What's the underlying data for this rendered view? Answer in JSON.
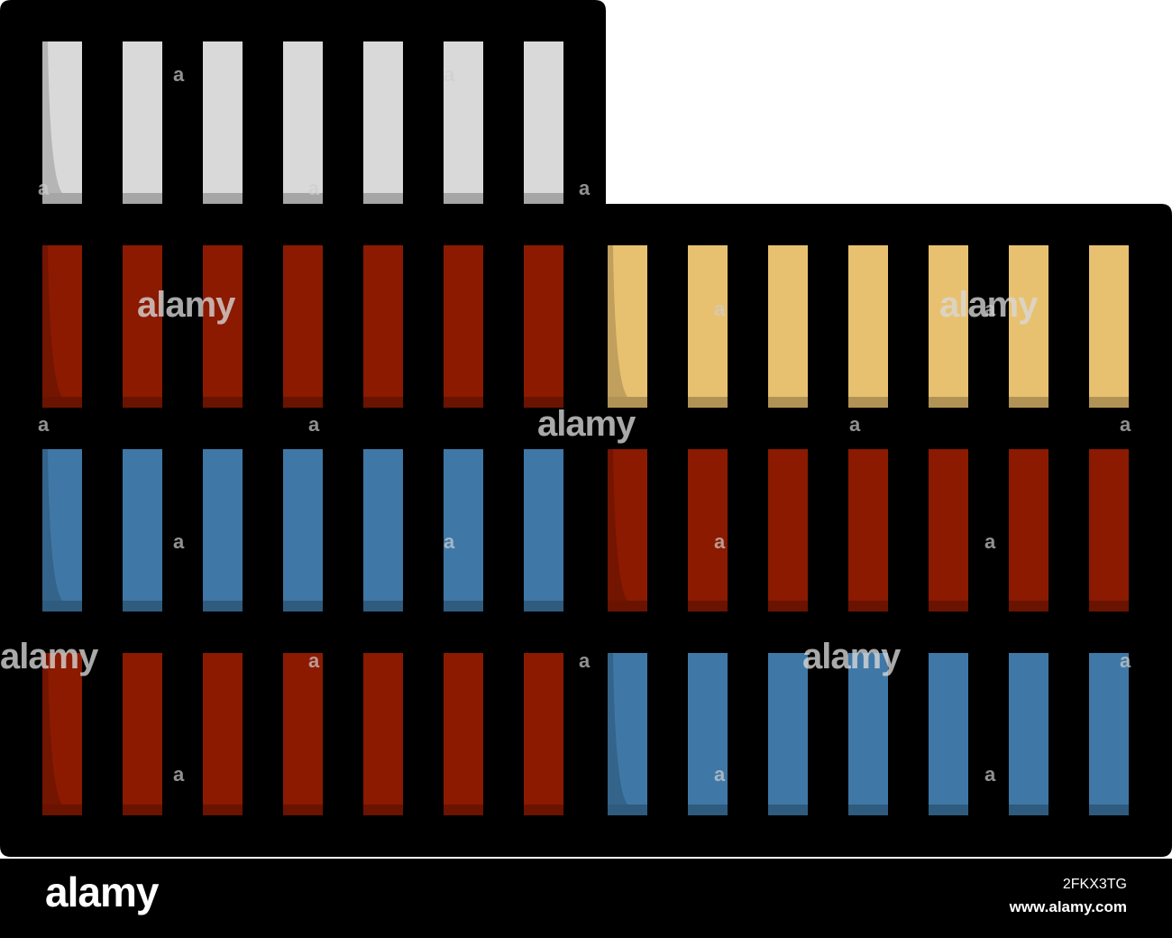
{
  "colors": {
    "outline": "#000000",
    "gray_block": "#d9d9d9",
    "red_block": "#8b1a00",
    "yellow_block": "#e8c170",
    "blue_block": "#3f78a6"
  },
  "icon": "container-stack-icon",
  "rows": [
    {
      "left": "gray",
      "right": null
    },
    {
      "left": "red",
      "right": "yellow"
    },
    {
      "left": "blue",
      "right": "red"
    },
    {
      "left": "red",
      "right": "blue"
    }
  ],
  "watermark": {
    "word": "alamy",
    "letter": "a"
  },
  "footer": {
    "logo": "alamy",
    "image_id": "2FKX3TG",
    "url": "www.alamy.com"
  }
}
